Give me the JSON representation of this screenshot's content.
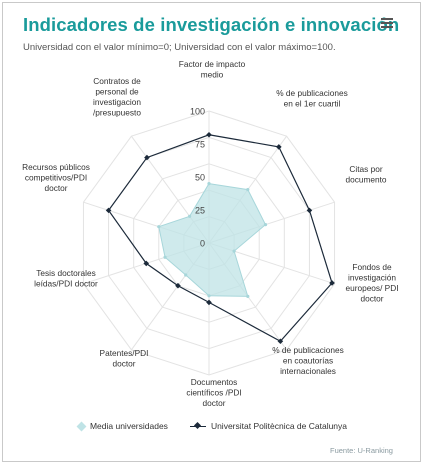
{
  "header": {
    "title": "Indicadores de investigación e innovación",
    "subtitle": "Universidad con el valor mínimo=0; Universidad con el valor máximo=100."
  },
  "menu_icon": "hamburger-menu-icon",
  "source": "Fuente: U-Ranking",
  "colors": {
    "title": "#1a9b9b",
    "series_average_fill": "#bfe3e6",
    "series_upc": "#1c2a3a",
    "grid": "#e3e3e3"
  },
  "chart_data": {
    "type": "radar",
    "title": "Indicadores de investigación e innovación",
    "subtitle": "Universidad con el valor mínimo=0; Universidad con el valor máximo=100.",
    "categories": [
      "Factor de impacto medio",
      "% de publicaciones en el 1er cuartil",
      "Citas por documento",
      "Fondos de investigación europeos/ PDI doctor",
      "% de publicaciones en coautorías internacionales",
      "Documentos científicos /PDI doctor",
      "Patentes/PDI doctor",
      "Tesis doctorales leídas/PDI doctor",
      "Recursos públicos competitivos/PDI doctor",
      "Contratos de personal de investigación /presupuesto"
    ],
    "radial_ticks": [
      "0",
      "25",
      "50",
      "75",
      "100"
    ],
    "rmin": 0,
    "rmax": 100,
    "legend_position": "bottom",
    "series": [
      {
        "name": "Media universidades",
        "style": "area",
        "values": [
          45,
          50,
          45,
          20,
          50,
          40,
          30,
          35,
          40,
          25
        ]
      },
      {
        "name": "Universitat Politècnica de Catalunya",
        "style": "line",
        "values": [
          82,
          90,
          80,
          98,
          92,
          45,
          40,
          50,
          80,
          80
        ]
      }
    ]
  }
}
